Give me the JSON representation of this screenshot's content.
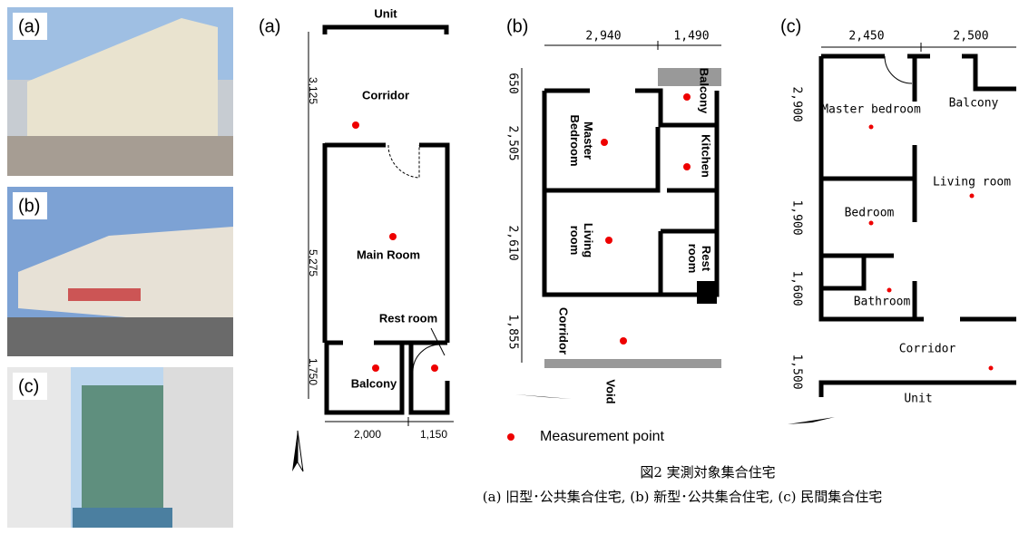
{
  "photos": [
    {
      "label": "(a)"
    },
    {
      "label": "(b)"
    },
    {
      "label": "(c)"
    }
  ],
  "plans": [
    {
      "label": "(a)",
      "unit": "Unit",
      "dims_v": [
        "3,125",
        "5,275",
        "1,750"
      ],
      "dims_h": [
        "2,000",
        "1,150"
      ],
      "rooms": [
        "Corridor",
        "Main Room",
        "Rest room",
        "Balcony"
      ]
    },
    {
      "label": "(b)",
      "dims_h": [
        "2,940",
        "1,490"
      ],
      "dims_v": [
        "650",
        "2,505",
        "2,610",
        "1,855"
      ],
      "rooms": [
        "Balcony",
        "Master Bedroom",
        "Kitchen",
        "Living room",
        "Rest room",
        "Corridor",
        "Void"
      ]
    },
    {
      "label": "(c)",
      "dims_h": [
        "2,450",
        "2,500"
      ],
      "dims_v": [
        "2,900",
        "1,900",
        "1,600",
        "1,500"
      ],
      "rooms": [
        "Master bedroom",
        "Balcony",
        "Living room",
        "Bedroom",
        "Bathroom",
        "Corridor",
        "Unit"
      ]
    }
  ],
  "legend": "Measurement point",
  "caption": {
    "title": "図2 実測対象集合住宅",
    "text": "(a) 旧型･公共集合住宅, (b) 新型･公共集合住宅, (c) 民間集合住宅"
  }
}
